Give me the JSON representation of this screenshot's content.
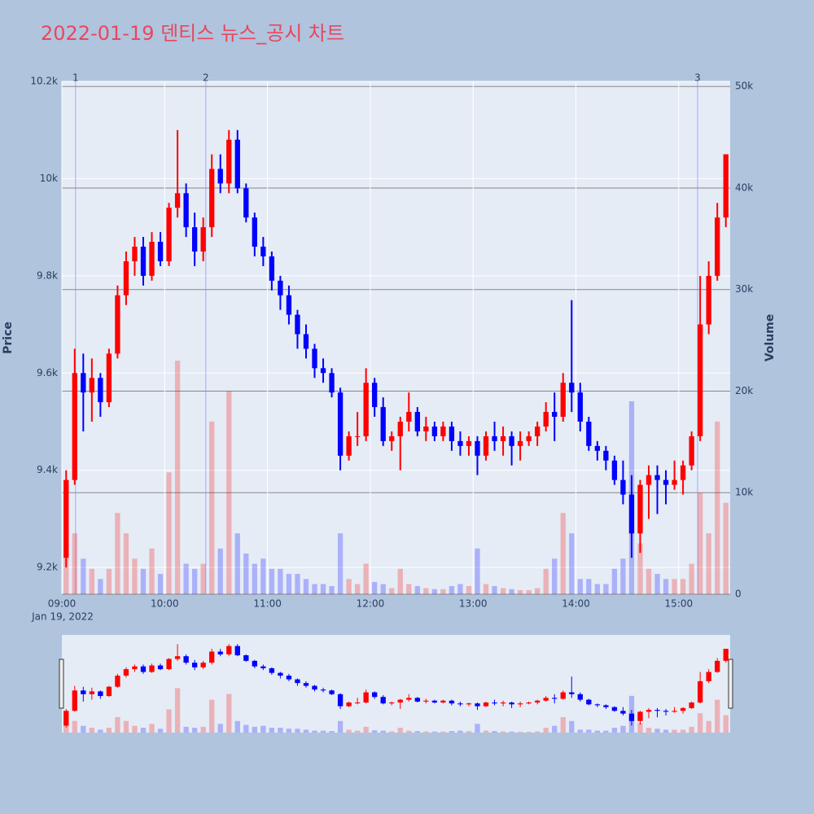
{
  "chart_data": {
    "type": "candlestick",
    "title": "2022-01-19 덴티스 뉴스_공시 차트",
    "x_date_label": "Jan 19, 2022",
    "y_title": "Price",
    "y2_title": "Volume",
    "increasing_color": "#ff0000",
    "decreasing_color": "#0000ff",
    "grid": true,
    "xlim": [
      "09:00",
      "15:30"
    ],
    "xticks": [
      "09:00",
      "10:00",
      "11:00",
      "12:00",
      "13:00",
      "14:00",
      "15:00"
    ],
    "ylim": [
      9145,
      10200
    ],
    "yticks": [
      {
        "value": 9200,
        "label": "9.2k"
      },
      {
        "value": 9400,
        "label": "9.4k"
      },
      {
        "value": 9600,
        "label": "9.6k"
      },
      {
        "value": 9800,
        "label": "9.8k"
      },
      {
        "value": 10000,
        "label": "10k"
      },
      {
        "value": 10200,
        "label": "10.2k"
      }
    ],
    "y2lim": [
      0,
      50500
    ],
    "y2ticks": [
      0,
      {
        "value": 10000,
        "label": "10k"
      },
      {
        "value": 20000,
        "label": "20k"
      },
      {
        "value": 30000,
        "label": "30k"
      },
      {
        "value": 40000,
        "label": "40k"
      },
      {
        "value": 50000,
        "label": "50k"
      }
    ],
    "annotations": [
      {
        "x": "09:08",
        "text": "1"
      },
      {
        "x": "10:24",
        "text": "2"
      },
      {
        "x": "15:11",
        "text": "3"
      }
    ],
    "x": [
      "09:00",
      "09:05",
      "09:10",
      "09:15",
      "09:20",
      "09:25",
      "09:30",
      "09:35",
      "09:40",
      "09:45",
      "09:50",
      "09:55",
      "10:00",
      "10:05",
      "10:10",
      "10:15",
      "10:20",
      "10:25",
      "10:30",
      "10:35",
      "10:40",
      "10:45",
      "10:50",
      "10:55",
      "11:00",
      "11:05",
      "11:10",
      "11:15",
      "11:20",
      "11:25",
      "11:30",
      "11:35",
      "11:40",
      "11:45",
      "11:50",
      "11:55",
      "12:00",
      "12:05",
      "12:10",
      "12:15",
      "12:20",
      "12:25",
      "12:30",
      "12:35",
      "12:40",
      "12:45",
      "12:50",
      "12:55",
      "13:00",
      "13:05",
      "13:10",
      "13:15",
      "13:20",
      "13:25",
      "13:30",
      "13:35",
      "13:40",
      "13:45",
      "13:50",
      "13:55",
      "14:00",
      "14:05",
      "14:10",
      "14:15",
      "14:20",
      "14:25",
      "14:30",
      "14:35",
      "14:40",
      "14:45",
      "14:50",
      "14:55",
      "15:00",
      "15:05",
      "15:10",
      "15:15",
      "15:20",
      "15:25"
    ],
    "open": [
      9220,
      9380,
      9600,
      9560,
      9590,
      9540,
      9640,
      9760,
      9830,
      9860,
      9800,
      9870,
      9830,
      9940,
      9970,
      9900,
      9850,
      9900,
      10020,
      9990,
      10080,
      9980,
      9920,
      9860,
      9840,
      9790,
      9760,
      9720,
      9680,
      9650,
      9610,
      9600,
      9560,
      9430,
      9470,
      9470,
      9580,
      9530,
      9460,
      9470,
      9500,
      9520,
      9480,
      9490,
      9470,
      9490,
      9460,
      9450,
      9460,
      9430,
      9470,
      9460,
      9470,
      9450,
      9460,
      9470,
      9490,
      9520,
      9510,
      9580,
      9560,
      9500,
      9450,
      9440,
      9420,
      9380,
      9350,
      9270,
      9370,
      9390,
      9380,
      9370,
      9380,
      9410,
      9470,
      9700,
      9800,
      9920
    ],
    "high": [
      9400,
      9650,
      9640,
      9630,
      9600,
      9650,
      9780,
      9850,
      9880,
      9880,
      9890,
      9890,
      9950,
      10100,
      9990,
      9930,
      9920,
      10050,
      10050,
      10100,
      10100,
      9990,
      9930,
      9880,
      9850,
      9800,
      9780,
      9730,
      9700,
      9660,
      9630,
      9610,
      9570,
      9480,
      9520,
      9610,
      9590,
      9550,
      9480,
      9510,
      9560,
      9530,
      9510,
      9500,
      9500,
      9500,
      9480,
      9470,
      9470,
      9480,
      9500,
      9490,
      9480,
      9480,
      9480,
      9500,
      9540,
      9560,
      9600,
      9750,
      9580,
      9510,
      9460,
      9450,
      9430,
      9420,
      9390,
      9380,
      9410,
      9410,
      9400,
      9420,
      9420,
      9480,
      9800,
      9830,
      9950,
      10050
    ],
    "low": [
      9200,
      9370,
      9480,
      9500,
      9510,
      9530,
      9630,
      9740,
      9800,
      9780,
      9790,
      9820,
      9820,
      9920,
      9880,
      9820,
      9830,
      9880,
      9970,
      9970,
      9970,
      9910,
      9840,
      9820,
      9770,
      9730,
      9700,
      9650,
      9630,
      9590,
      9580,
      9550,
      9400,
      9420,
      9450,
      9460,
      9510,
      9450,
      9440,
      9400,
      9480,
      9470,
      9460,
      9460,
      9460,
      9440,
      9430,
      9430,
      9390,
      9420,
      9440,
      9430,
      9410,
      9420,
      9450,
      9450,
      9480,
      9460,
      9500,
      9520,
      9480,
      9440,
      9420,
      9400,
      9370,
      9330,
      9220,
      9230,
      9300,
      9310,
      9330,
      9360,
      9350,
      9400,
      9460,
      9680,
      9790,
      9900
    ],
    "close": [
      9380,
      9600,
      9560,
      9590,
      9540,
      9640,
      9760,
      9830,
      9860,
      9800,
      9870,
      9830,
      9940,
      9970,
      9900,
      9850,
      9900,
      10020,
      9990,
      10080,
      9980,
      9920,
      9860,
      9840,
      9790,
      9760,
      9720,
      9680,
      9650,
      9610,
      9600,
      9560,
      9430,
      9470,
      9470,
      9580,
      9530,
      9460,
      9470,
      9500,
      9520,
      9480,
      9490,
      9470,
      9490,
      9460,
      9450,
      9460,
      9430,
      9470,
      9460,
      9470,
      9450,
      9460,
      9470,
      9490,
      9520,
      9510,
      9580,
      9560,
      9500,
      9450,
      9440,
      9420,
      9380,
      9350,
      9270,
      9370,
      9390,
      9380,
      9370,
      9380,
      9410,
      9470,
      9700,
      9800,
      9920,
      10050
    ],
    "volume": [
      4500,
      6000,
      3500,
      2500,
      1500,
      2500,
      8000,
      6000,
      3500,
      2500,
      4500,
      2000,
      12000,
      23000,
      3000,
      2500,
      3000,
      17000,
      4500,
      20000,
      6000,
      4000,
      3000,
      3500,
      2500,
      2500,
      2000,
      2000,
      1500,
      1000,
      1000,
      800,
      6000,
      1500,
      1000,
      3000,
      1200,
      1000,
      600,
      2500,
      1000,
      800,
      600,
      500,
      500,
      800,
      1000,
      800,
      4500,
      1000,
      800,
      600,
      500,
      400,
      400,
      600,
      2500,
      3500,
      8000,
      6000,
      1500,
      1500,
      1000,
      1000,
      2500,
      3500,
      19000,
      5000,
      2500,
      2000,
      1500,
      1500,
      1500,
      3000,
      10000,
      6000,
      17000,
      9000
    ]
  }
}
